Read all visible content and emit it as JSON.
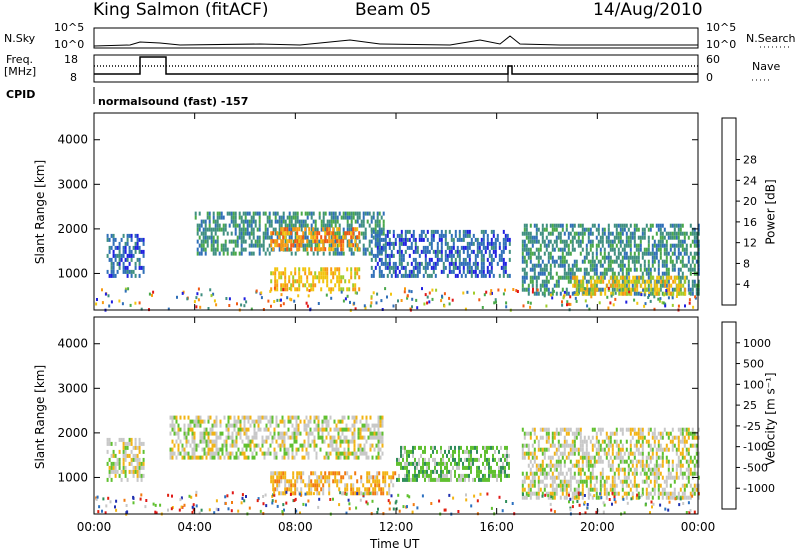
{
  "header": {
    "station": "King Salmon (fitACF)",
    "beam": "Beam 05",
    "date": "14/Aug/2010"
  },
  "top_panel": {
    "left_labels": {
      "nsky": "N.Sky",
      "freq_line1": "Freq.",
      "freq_line2": "[MHz]",
      "cpid": "CPID"
    },
    "right_labels": {
      "nsearch": "N.Search",
      "nave": "Nave"
    },
    "noise_ticks_left": [
      "10^5",
      "10^0"
    ],
    "noise_ticks_right": [
      "10^5",
      "10^0"
    ],
    "freq_ticks": [
      "18",
      "8"
    ],
    "nave_ticks": [
      "60",
      "0"
    ],
    "cpid_text": "normalsound (fast) -157"
  },
  "chart_data": [
    {
      "type": "heatmap",
      "name": "power",
      "title": "",
      "xlabel": "",
      "ylabel": "Slant Range [km]",
      "xlim": [
        0,
        24
      ],
      "ylim": [
        180,
        4600
      ],
      "x_ticks": [
        "00:00",
        "04:00",
        "08:00",
        "12:00",
        "16:00",
        "20:00",
        "00:00"
      ],
      "y_ticks": [
        "1000",
        "2000",
        "3000",
        "4000"
      ],
      "colorbar": {
        "label": "Power [dB]",
        "ticks": [
          "4",
          "8",
          "12",
          "16",
          "20",
          "24",
          "28"
        ],
        "colors": [
          "#1f1fe0",
          "#2f6fb8",
          "#3f8f80",
          "#49a84a",
          "#9fcc2a",
          "#f2c40f",
          "#f89a12",
          "#f25a14",
          "#e01818"
        ]
      },
      "regions": [
        {
          "t": [
            0.5,
            2.0
          ],
          "r": [
            900,
            1800
          ],
          "level": 1
        },
        {
          "t": [
            4.0,
            11.5
          ],
          "r": [
            1400,
            2300
          ],
          "level": 2
        },
        {
          "t": [
            7.0,
            10.5
          ],
          "r": [
            1500,
            2000
          ],
          "level": 6
        },
        {
          "t": [
            7.0,
            10.5
          ],
          "r": [
            600,
            1100
          ],
          "level": 5
        },
        {
          "t": [
            11.0,
            16.5
          ],
          "r": [
            900,
            1900
          ],
          "level": 1
        },
        {
          "t": [
            17.0,
            24.0
          ],
          "r": [
            500,
            2100
          ],
          "level": 2
        },
        {
          "t": [
            19.0,
            23.5
          ],
          "r": [
            500,
            900
          ],
          "level": 5
        }
      ]
    },
    {
      "type": "heatmap",
      "name": "velocity",
      "title": "",
      "xlabel": "Time UT",
      "ylabel": "Slant Range [km]",
      "xlim": [
        0,
        24
      ],
      "ylim": [
        180,
        4600
      ],
      "x_ticks": [
        "00:00",
        "04:00",
        "08:00",
        "12:00",
        "16:00",
        "20:00",
        "00:00"
      ],
      "y_ticks": [
        "1000",
        "2000",
        "3000",
        "4000"
      ],
      "colorbar": {
        "label": "Velocity [m s⁻¹]",
        "ticks": [
          "1000",
          "500",
          "100",
          "25",
          "-25",
          "-100",
          "-500",
          "-1000"
        ],
        "colors": [
          "#2030b0",
          "#2c70c0",
          "#2f8e5a",
          "#60c030",
          "#c8c8c8",
          "#f2b414",
          "#f27a10",
          "#e02010",
          "#e01818"
        ]
      },
      "regions": [
        {
          "t": [
            0.5,
            2.0
          ],
          "r": [
            900,
            1800
          ],
          "level": 4
        },
        {
          "t": [
            3.0,
            11.5
          ],
          "r": [
            1400,
            2300
          ],
          "level": 4
        },
        {
          "t": [
            7.0,
            12.0
          ],
          "r": [
            600,
            1100
          ],
          "level": 5
        },
        {
          "t": [
            12.0,
            16.5
          ],
          "r": [
            900,
            1700
          ],
          "level": 3
        },
        {
          "t": [
            17.0,
            24.0
          ],
          "r": [
            500,
            2100
          ],
          "level": 4
        }
      ]
    }
  ]
}
